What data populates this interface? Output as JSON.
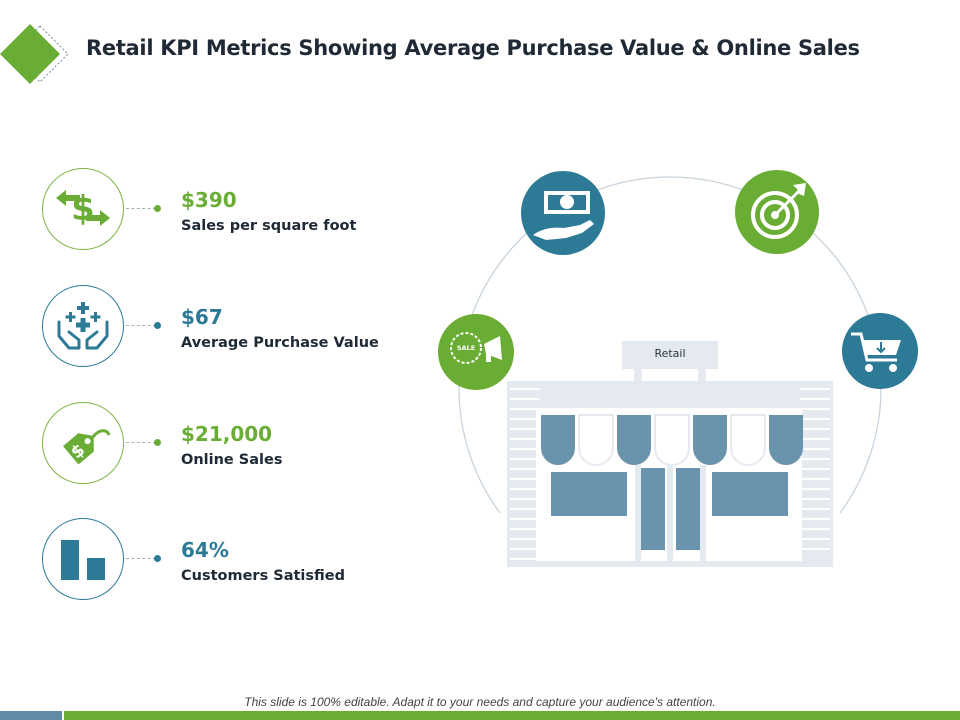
{
  "slide": {
    "title": "Retail KPI Metrics Showing Average Purchase Value & Online Sales",
    "footer": "This slide is 100% editable. Adapt it to your needs and capture your audience's attention.",
    "colors": {
      "green": "#7cb342",
      "teal": "#2c7a96",
      "title": "#1f2a36",
      "storefront": "#e4eaf0",
      "awning_blue": "#6a93ad"
    }
  },
  "kpis": [
    {
      "value": "$390",
      "label": "Sales per square foot",
      "icon": "dollar-arrows-icon",
      "accent": "#6aad35"
    },
    {
      "value": "$67",
      "label": "Average Purchase Value",
      "icon": "hands-sparkle-icon",
      "accent": "#2c7a96"
    },
    {
      "value": "$21,000",
      "label": "Online Sales",
      "icon": "price-tag-icon",
      "accent": "#6aad35"
    },
    {
      "value": "64%",
      "label": "Customers  Satisfied",
      "icon": "bar-chart-icon",
      "accent": "#2c7a96"
    }
  ],
  "illustration": {
    "store_sign": "Retail",
    "orbit_icons": [
      "sale-megaphone-icon",
      "cash-in-hand-icon",
      "target-arrow-icon",
      "shopping-cart-icon"
    ],
    "sale_badge_text": "SALE"
  }
}
